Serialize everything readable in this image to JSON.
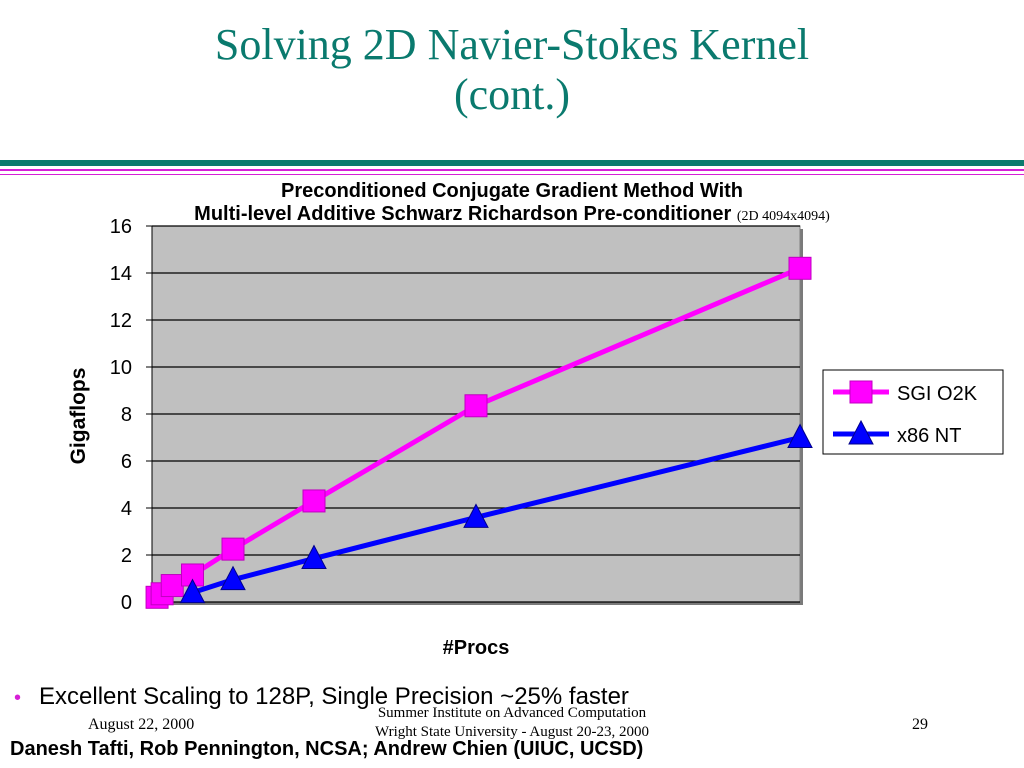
{
  "slide": {
    "title_line1": "Solving 2D Navier-Stokes Kernel",
    "title_line2": "(cont.)",
    "bullet": "Excellent Scaling to 128P, Single Precision ~25% faster",
    "footer_date": "August 22, 2000",
    "footer_center_line1": "Summer Institute on Advanced Computation",
    "footer_center_line2": "Wright State University - August 20-23, 2000",
    "footer_page": "29",
    "credits": "Danesh Tafti, Rob Pennington, NCSA; Andrew Chien (UIUC, UCSD)",
    "colors": {
      "title": "#0a7a6e",
      "rule_teal": "#0a7a6e",
      "rule_magenta": "#d61fd6",
      "bullet": "#d61fd6"
    }
  },
  "chart_data": {
    "type": "line",
    "title_line1": "Preconditioned Conjugate Gradient Method With",
    "title_line2": "Multi-level Additive Schwarz Richardson Pre-conditioner",
    "title_note": "(2D 4094x4094)",
    "xlabel": "#Procs",
    "ylabel": "Gigaflops",
    "ylim": [
      0,
      16
    ],
    "yticks": [
      "0",
      "2",
      "4",
      "6",
      "8",
      "10",
      "12",
      "14",
      "16"
    ],
    "xlim": [
      0,
      128
    ],
    "grid": true,
    "legend_position": "right",
    "plot_background": "#c0c0c0",
    "series": [
      {
        "name": "SGI O2K",
        "color": "#ff00ff",
        "marker": "square",
        "x": [
          1,
          2,
          4,
          8,
          16,
          32,
          64,
          128
        ],
        "y": [
          0.2,
          0.35,
          0.7,
          1.15,
          2.25,
          4.3,
          8.35,
          14.2
        ]
      },
      {
        "name": "x86 NT",
        "color": "#0000ff",
        "marker": "triangle",
        "x": [
          8,
          16,
          32,
          64,
          128
        ],
        "y": [
          0.4,
          0.95,
          1.85,
          3.6,
          7.0
        ]
      }
    ]
  }
}
